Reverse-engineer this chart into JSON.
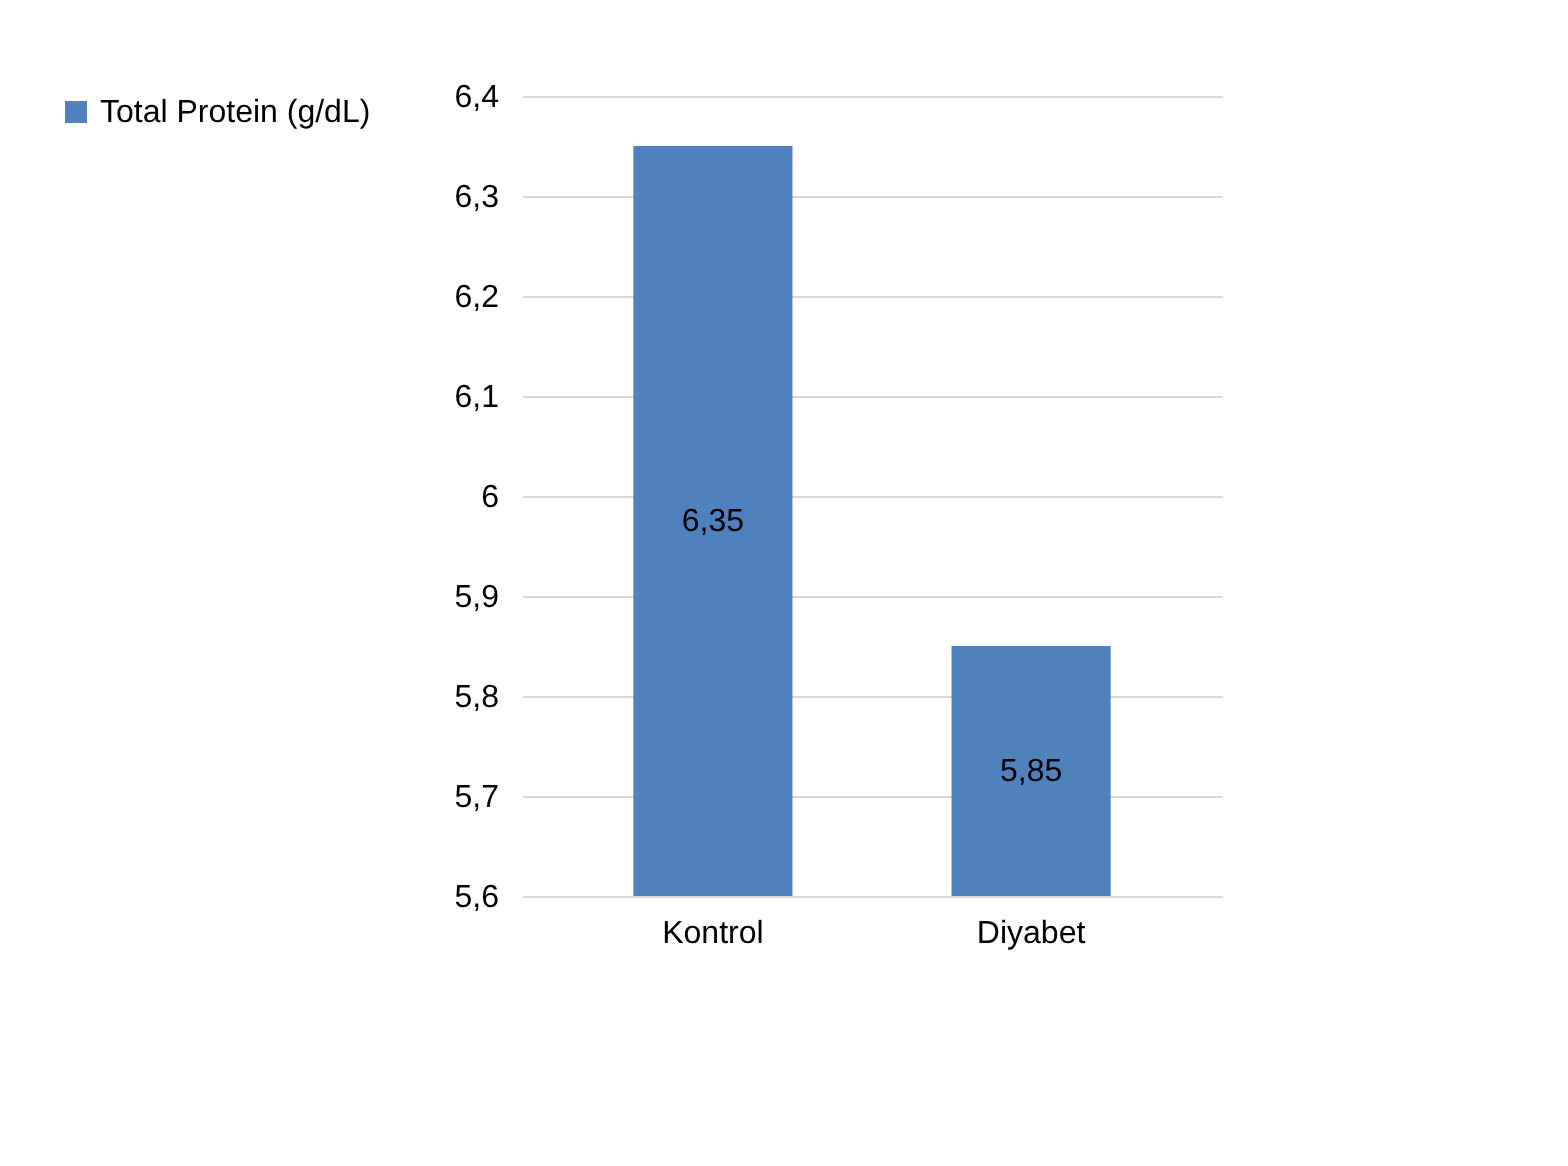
{
  "chart_data": {
    "type": "bar",
    "categories": [
      "Kontrol",
      "Diyabet"
    ],
    "series": [
      {
        "name": "Total Protein (g/dL)",
        "color": "#4f81bd",
        "values": [
          6.35,
          5.85
        ]
      }
    ],
    "value_labels": [
      "6,35",
      "5,85"
    ],
    "ylim": [
      5.6,
      6.4
    ],
    "yticks": [
      {
        "value": 5.6,
        "label": "5,6"
      },
      {
        "value": 5.7,
        "label": "5,7"
      },
      {
        "value": 5.8,
        "label": "5,8"
      },
      {
        "value": 5.9,
        "label": "5,9"
      },
      6,
      {
        "value": 6.1,
        "label": "6,1"
      },
      {
        "value": 6.2,
        "label": "6,2"
      },
      {
        "value": 6.3,
        "label": "6,3"
      },
      {
        "value": 6.4,
        "label": "6,4"
      }
    ],
    "grid": "y",
    "legend": "left"
  }
}
